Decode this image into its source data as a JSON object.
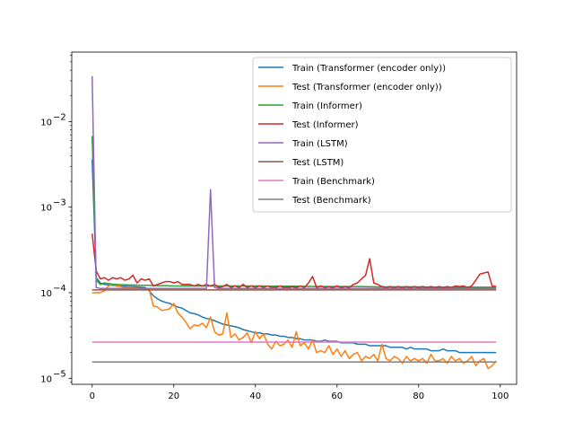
{
  "chart_data": {
    "type": "line",
    "title": "",
    "xlabel": "",
    "ylabel": "",
    "xlim": [
      -5,
      104
    ],
    "ylim": [
      8.5e-06,
      0.065
    ],
    "yscale": "log",
    "grid": false,
    "legend": "upper right",
    "xticks": [
      0,
      20,
      40,
      60,
      80,
      100
    ],
    "xtick_labels": [
      "0",
      "20",
      "40",
      "60",
      "80",
      "100"
    ],
    "yticks": [
      1e-05,
      0.0001,
      0.001,
      0.01
    ],
    "ytick_labels": [
      "10",
      "10",
      "10",
      "10"
    ],
    "ytick_exponents": [
      "−5",
      "−4",
      "−3",
      "−2"
    ],
    "series": [
      {
        "name": "Train (Transformer (encoder only))",
        "color": "#1f77b4",
        "x": [
          0,
          1,
          2,
          3,
          4,
          5,
          6,
          7,
          8,
          9,
          10,
          11,
          12,
          13,
          14,
          15,
          16,
          17,
          18,
          19,
          20,
          21,
          22,
          23,
          24,
          25,
          26,
          27,
          28,
          29,
          30,
          31,
          32,
          33,
          34,
          35,
          36,
          37,
          38,
          39,
          40,
          41,
          42,
          43,
          44,
          45,
          46,
          47,
          48,
          49,
          50,
          51,
          52,
          53,
          54,
          55,
          56,
          57,
          58,
          59,
          60,
          61,
          62,
          63,
          64,
          65,
          66,
          67,
          68,
          69,
          70,
          71,
          72,
          73,
          74,
          75,
          76,
          77,
          78,
          79,
          80,
          81,
          82,
          83,
          84,
          85,
          86,
          87,
          88,
          89,
          90,
          91,
          92,
          93,
          94,
          95,
          96,
          97,
          98,
          99
        ],
        "y": [
          0.0036,
          0.00015,
          0.00013,
          0.000125,
          0.000123,
          0.000122,
          0.00012,
          0.00012,
          0.000119,
          0.000118,
          0.000118,
          0.000117,
          0.000116,
          0.000115,
          0.000105,
          9.2e-05,
          8.5e-05,
          8e-05,
          7.7e-05,
          7.5e-05,
          7.1e-05,
          6.8e-05,
          6.6e-05,
          6.2e-05,
          5.8e-05,
          5.7e-05,
          5.5e-05,
          5.2e-05,
          5e-05,
          4.9e-05,
          4.7e-05,
          4.5e-05,
          4.3e-05,
          4.2e-05,
          4.1e-05,
          4e-05,
          3.9e-05,
          3.7e-05,
          3.6e-05,
          3.5e-05,
          3.4e-05,
          3.4e-05,
          3.3e-05,
          3.3e-05,
          3.2e-05,
          3.2e-05,
          3.1e-05,
          3.1e-05,
          3e-05,
          3e-05,
          2.9e-05,
          2.9e-05,
          2.8e-05,
          2.8e-05,
          2.8e-05,
          2.7e-05,
          2.7e-05,
          2.8e-05,
          2.7e-05,
          2.7e-05,
          2.7e-05,
          2.6e-05,
          2.6e-05,
          2.6e-05,
          2.6e-05,
          2.5e-05,
          2.5e-05,
          2.5e-05,
          2.4e-05,
          2.4e-05,
          2.4e-05,
          2.4e-05,
          2.4e-05,
          2.3e-05,
          2.3e-05,
          2.3e-05,
          2.3e-05,
          2.2e-05,
          2.3e-05,
          2.2e-05,
          2.2e-05,
          2.2e-05,
          2.2e-05,
          2.1e-05,
          2.1e-05,
          2.1e-05,
          2.2e-05,
          2.1e-05,
          2.1e-05,
          2.1e-05,
          2e-05,
          2e-05,
          2e-05,
          2e-05,
          2e-05,
          2e-05,
          2e-05,
          2e-05,
          2e-05,
          2e-05
        ]
      },
      {
        "name": "Test (Transformer (encoder only))",
        "color": "#ff7f0e",
        "x": [
          0,
          1,
          2,
          3,
          4,
          5,
          6,
          7,
          8,
          9,
          10,
          11,
          12,
          13,
          14,
          15,
          16,
          17,
          18,
          19,
          20,
          21,
          22,
          23,
          24,
          25,
          26,
          27,
          28,
          29,
          30,
          31,
          32,
          33,
          34,
          35,
          36,
          37,
          38,
          39,
          40,
          41,
          42,
          43,
          44,
          45,
          46,
          47,
          48,
          49,
          50,
          51,
          52,
          53,
          54,
          55,
          56,
          57,
          58,
          59,
          60,
          61,
          62,
          63,
          64,
          65,
          66,
          67,
          68,
          69,
          70,
          71,
          72,
          73,
          74,
          75,
          76,
          77,
          78,
          79,
          80,
          81,
          82,
          83,
          84,
          85,
          86,
          87,
          88,
          89,
          90,
          91,
          92,
          93,
          94,
          95,
          96,
          97,
          98,
          99
        ],
        "y": [
          0.0001,
          0.0001,
          0.0001,
          0.000105,
          0.00012,
          0.000125,
          0.00012,
          0.000118,
          0.000115,
          0.000116,
          0.000114,
          0.000113,
          0.000112,
          0.00011,
          0.000108,
          7e-05,
          6.8e-05,
          6.2e-05,
          6.3e-05,
          6.5e-05,
          7.5e-05,
          5.8e-05,
          5.2e-05,
          4.5e-05,
          3.8e-05,
          4.2e-05,
          4.1e-05,
          4.4e-05,
          3.9e-05,
          5.2e-05,
          3.5e-05,
          3.2e-05,
          3.3e-05,
          5.8e-05,
          3e-05,
          3.3e-05,
          2.8e-05,
          3e-05,
          3.4e-05,
          2.6e-05,
          3.5e-05,
          2.9e-05,
          3.3e-05,
          2.5e-05,
          2.2e-05,
          2.7e-05,
          2.4e-05,
          2.5e-05,
          2.8e-05,
          2.3e-05,
          3.5e-05,
          2.4e-05,
          2.6e-05,
          2.2e-05,
          2.8e-05,
          2e-05,
          2.1e-05,
          2e-05,
          2.4e-05,
          1.9e-05,
          2.2e-05,
          1.8e-05,
          2.1e-05,
          1.7e-05,
          1.9e-05,
          2e-05,
          1.6e-05,
          1.8e-05,
          1.7e-05,
          1.9e-05,
          1.6e-05,
          2.5e-05,
          1.7e-05,
          1.6e-05,
          1.8e-05,
          1.7e-05,
          1.5e-05,
          1.8e-05,
          1.6e-05,
          1.7e-05,
          1.6e-05,
          1.7e-05,
          1.5e-05,
          1.9e-05,
          1.6e-05,
          1.6e-05,
          1.7e-05,
          1.5e-05,
          1.8e-05,
          1.6e-05,
          1.7e-05,
          1.5e-05,
          1.6e-05,
          1.8e-05,
          1.4e-05,
          1.6e-05,
          1.7e-05,
          1.3e-05,
          1.4e-05,
          1.6e-05
        ]
      },
      {
        "name": "Train (Informer)",
        "color": "#2ca02c",
        "x": [
          0,
          1,
          2,
          3,
          4,
          5,
          6,
          7,
          8,
          9,
          10,
          12,
          14,
          16,
          18,
          20,
          25,
          30,
          35,
          40,
          45,
          50,
          55,
          60,
          65,
          70,
          75,
          80,
          85,
          90,
          95,
          99
        ],
        "y": [
          0.0068,
          0.00014,
          0.000125,
          0.00013,
          0.000128,
          0.000126,
          0.000125,
          0.000124,
          0.000124,
          0.000123,
          0.000123,
          0.000122,
          0.000122,
          0.000121,
          0.000121,
          0.00012,
          0.00012,
          0.00012,
          0.00012,
          0.00012,
          0.000119,
          0.000119,
          0.000118,
          0.000118,
          0.000118,
          0.000117,
          0.000117,
          0.000117,
          0.000116,
          0.000116,
          0.000116,
          0.000116
        ]
      },
      {
        "name": "Test (Informer)",
        "color": "#d62728",
        "x": [
          0,
          1,
          2,
          3,
          4,
          5,
          6,
          7,
          8,
          9,
          10,
          11,
          12,
          13,
          14,
          15,
          16,
          17,
          18,
          19,
          20,
          21,
          22,
          23,
          24,
          25,
          26,
          27,
          28,
          29,
          30,
          31,
          32,
          33,
          34,
          35,
          36,
          37,
          38,
          39,
          40,
          41,
          42,
          43,
          44,
          45,
          46,
          47,
          48,
          49,
          50,
          51,
          52,
          53,
          54,
          55,
          56,
          57,
          58,
          59,
          60,
          61,
          62,
          63,
          64,
          65,
          66,
          67,
          68,
          69,
          70,
          71,
          72,
          73,
          74,
          75,
          76,
          77,
          78,
          79,
          80,
          81,
          82,
          83,
          84,
          85,
          86,
          87,
          88,
          89,
          90,
          91,
          92,
          93,
          94,
          95,
          96,
          97,
          98,
          99
        ],
        "y": [
          0.00049,
          0.00018,
          0.000145,
          0.00015,
          0.00014,
          0.00015,
          0.000145,
          0.00015,
          0.00014,
          0.000145,
          0.00016,
          0.00013,
          0.000145,
          0.00014,
          0.000145,
          0.00012,
          0.000125,
          0.00013,
          0.000135,
          0.000135,
          0.00013,
          0.000135,
          0.000125,
          0.000125,
          0.000125,
          0.00012,
          0.000125,
          0.00012,
          0.000125,
          0.00012,
          0.000125,
          0.000115,
          0.000118,
          0.000125,
          0.000115,
          0.00012,
          0.000115,
          0.000125,
          0.000115,
          0.00012,
          0.000115,
          0.00012,
          0.000115,
          0.00012,
          0.000115,
          0.000115,
          0.00012,
          0.000115,
          0.000115,
          0.000118,
          0.000115,
          0.00012,
          0.000115,
          0.00013,
          0.000155,
          0.000115,
          0.00012,
          0.000115,
          0.000118,
          0.000115,
          0.00012,
          0.000115,
          0.000118,
          0.000115,
          0.000125,
          0.00013,
          0.000145,
          0.00016,
          0.00025,
          0.00013,
          0.000125,
          0.000118,
          0.000115,
          0.000118,
          0.000115,
          0.000118,
          0.000115,
          0.000118,
          0.000115,
          0.000118,
          0.000115,
          0.000118,
          0.000115,
          0.000118,
          0.000115,
          0.000118,
          0.000115,
          0.000118,
          0.000115,
          0.00012,
          0.000118,
          0.00012,
          0.000115,
          0.00012,
          0.00014,
          0.000165,
          0.00017,
          0.000175,
          0.00012,
          0.000118
        ]
      },
      {
        "name": "Train (LSTM)",
        "color": "#9467bd",
        "x": [
          0,
          1,
          2,
          3,
          4,
          6,
          8,
          10,
          12,
          14,
          16,
          18,
          20,
          22,
          24,
          26,
          27,
          28,
          29,
          30,
          31,
          33,
          36,
          40,
          45,
          50,
          55,
          60,
          65,
          70,
          75,
          80,
          85,
          90,
          95,
          99
        ],
        "y": [
          0.034,
          0.000115,
          0.000112,
          0.000112,
          0.000112,
          0.000112,
          0.000112,
          0.000112,
          0.000112,
          0.000112,
          0.000112,
          0.000112,
          0.000112,
          0.000112,
          0.000112,
          0.000112,
          0.000112,
          0.000112,
          0.0016,
          0.000115,
          0.000112,
          0.000112,
          0.000112,
          0.000112,
          0.000112,
          0.000112,
          0.000112,
          0.000112,
          0.000112,
          0.000112,
          0.000112,
          0.000112,
          0.000112,
          0.000112,
          0.000112,
          0.000112
        ]
      },
      {
        "name": "Test (LSTM)",
        "color": "#8c564b",
        "x": [
          0,
          5,
          10,
          20,
          30,
          40,
          50,
          60,
          70,
          80,
          90,
          99
        ],
        "y": [
          0.000108,
          0.000108,
          0.000108,
          0.000108,
          0.000108,
          0.000108,
          0.000108,
          0.000108,
          0.000108,
          0.000108,
          0.000108,
          0.000108
        ]
      },
      {
        "name": "Train (Benchmark)",
        "color": "#e377c2",
        "x": [
          0,
          99
        ],
        "y": [
          2.65e-05,
          2.65e-05
        ]
      },
      {
        "name": "Test (Benchmark)",
        "color": "#7f7f7f",
        "x": [
          0,
          99
        ],
        "y": [
          1.55e-05,
          1.55e-05
        ]
      }
    ]
  }
}
